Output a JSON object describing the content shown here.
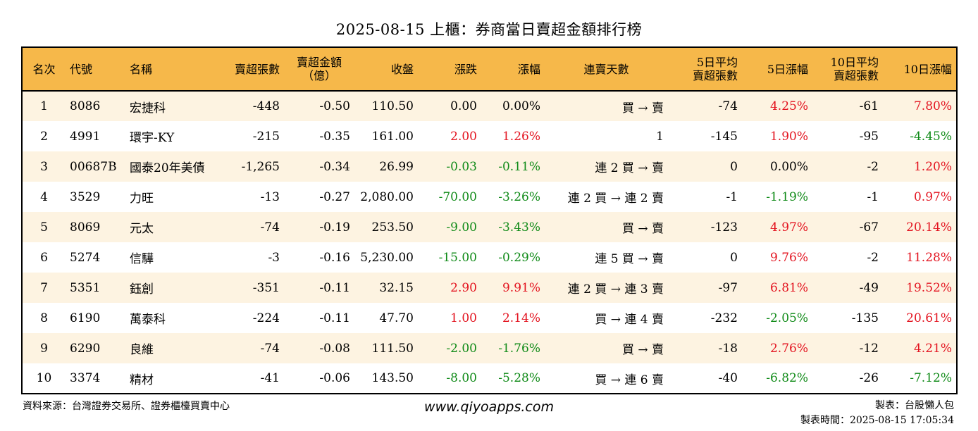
{
  "title": "2025-08-15 上櫃：券商當日賣超金額排行榜",
  "columns": [
    {
      "key": "rank",
      "label": "名次",
      "align": "c"
    },
    {
      "key": "code",
      "label": "代號",
      "align": "l"
    },
    {
      "key": "name",
      "label": "名稱",
      "align": "l"
    },
    {
      "key": "sell_vol",
      "label": "賣超張數",
      "align": "r"
    },
    {
      "key": "sell_amt",
      "label": "賣超金額\n（億）",
      "align": "c"
    },
    {
      "key": "close",
      "label": "收盤",
      "align": "r"
    },
    {
      "key": "change",
      "label": "漲跌",
      "align": "r"
    },
    {
      "key": "pct",
      "label": "漲幅",
      "align": "r"
    },
    {
      "key": "streak",
      "label": "連賣天數",
      "align": "c"
    },
    {
      "key": "avg5_vol",
      "label": "5日平均\n賣超張數",
      "align": "r"
    },
    {
      "key": "pct5",
      "label": "5日漲幅",
      "align": "r"
    },
    {
      "key": "avg10_vol",
      "label": "10日平均\n賣超張數",
      "align": "r"
    },
    {
      "key": "pct10",
      "label": "10日漲幅",
      "align": "r"
    }
  ],
  "rows": [
    {
      "rank": "1",
      "code": "8086",
      "name": "宏捷科",
      "sell_vol": "-448",
      "sell_amt": "-0.50",
      "close": "110.50",
      "change": "0.00",
      "pct": "0.00%",
      "streak": "買 → 賣",
      "avg5_vol": "-74",
      "pct5": "4.25%",
      "avg10_vol": "-61",
      "pct10": "7.80%"
    },
    {
      "rank": "2",
      "code": "4991",
      "name": "環宇-KY",
      "sell_vol": "-215",
      "sell_amt": "-0.35",
      "close": "161.00",
      "change": "2.00",
      "pct": "1.26%",
      "streak": "1",
      "avg5_vol": "-145",
      "pct5": "1.90%",
      "avg10_vol": "-95",
      "pct10": "-4.45%"
    },
    {
      "rank": "3",
      "code": "00687B",
      "name": "國泰20年美債",
      "sell_vol": "-1,265",
      "sell_amt": "-0.34",
      "close": "26.99",
      "change": "-0.03",
      "pct": "-0.11%",
      "streak": "連 2 買 → 賣",
      "avg5_vol": "0",
      "pct5": "0.00%",
      "avg10_vol": "-2",
      "pct10": "1.20%"
    },
    {
      "rank": "4",
      "code": "3529",
      "name": "力旺",
      "sell_vol": "-13",
      "sell_amt": "-0.27",
      "close": "2,080.00",
      "change": "-70.00",
      "pct": "-3.26%",
      "streak": "連 2 買 → 連 2 賣",
      "avg5_vol": "-1",
      "pct5": "-1.19%",
      "avg10_vol": "-1",
      "pct10": "0.97%"
    },
    {
      "rank": "5",
      "code": "8069",
      "name": "元太",
      "sell_vol": "-74",
      "sell_amt": "-0.19",
      "close": "253.50",
      "change": "-9.00",
      "pct": "-3.43%",
      "streak": "買 → 賣",
      "avg5_vol": "-123",
      "pct5": "4.97%",
      "avg10_vol": "-67",
      "pct10": "20.14%"
    },
    {
      "rank": "6",
      "code": "5274",
      "name": "信驊",
      "sell_vol": "-3",
      "sell_amt": "-0.16",
      "close": "5,230.00",
      "change": "-15.00",
      "pct": "-0.29%",
      "streak": "連 5 買 → 賣",
      "avg5_vol": "0",
      "pct5": "9.76%",
      "avg10_vol": "-2",
      "pct10": "11.28%"
    },
    {
      "rank": "7",
      "code": "5351",
      "name": "鈺創",
      "sell_vol": "-351",
      "sell_amt": "-0.11",
      "close": "32.15",
      "change": "2.90",
      "pct": "9.91%",
      "streak": "連 2 買 → 連 3 賣",
      "avg5_vol": "-97",
      "pct5": "6.81%",
      "avg10_vol": "-49",
      "pct10": "19.52%"
    },
    {
      "rank": "8",
      "code": "6190",
      "name": "萬泰科",
      "sell_vol": "-224",
      "sell_amt": "-0.11",
      "close": "47.70",
      "change": "1.00",
      "pct": "2.14%",
      "streak": "買 → 連 4 賣",
      "avg5_vol": "-232",
      "pct5": "-2.05%",
      "avg10_vol": "-135",
      "pct10": "20.61%"
    },
    {
      "rank": "9",
      "code": "6290",
      "name": "良維",
      "sell_vol": "-74",
      "sell_amt": "-0.08",
      "close": "111.50",
      "change": "-2.00",
      "pct": "-1.76%",
      "streak": "買 → 賣",
      "avg5_vol": "-18",
      "pct5": "2.76%",
      "avg10_vol": "-12",
      "pct10": "4.21%"
    },
    {
      "rank": "10",
      "code": "3374",
      "name": "精材",
      "sell_vol": "-41",
      "sell_amt": "-0.06",
      "close": "143.50",
      "change": "-8.00",
      "pct": "-5.28%",
      "streak": "買 → 連 6 賣",
      "avg5_vol": "-40",
      "pct5": "-6.82%",
      "avg10_vol": "-26",
      "pct10": "-7.12%"
    }
  ],
  "footer": {
    "source": "資料來源：台灣證券交易所、證券櫃檯買賣中心",
    "website": "www.qiyoapps.com",
    "author": "製表：台股懶人包",
    "timestamp": "製表時間：2025-08-15 17:05:34"
  },
  "colors": {
    "header_bg": "#f6b84a",
    "row_alt_bg": "#fdf3e1",
    "positive": "#e3131f",
    "negative": "#0f8a17"
  }
}
